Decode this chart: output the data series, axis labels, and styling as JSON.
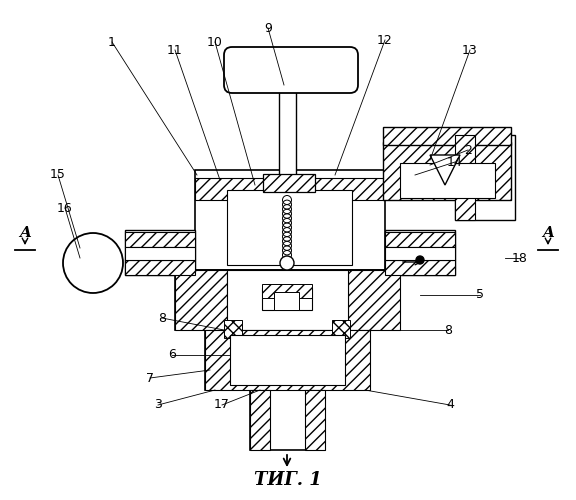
{
  "title": "ΤИГ. 1",
  "bg_color": "#ffffff",
  "line_color": "#000000"
}
